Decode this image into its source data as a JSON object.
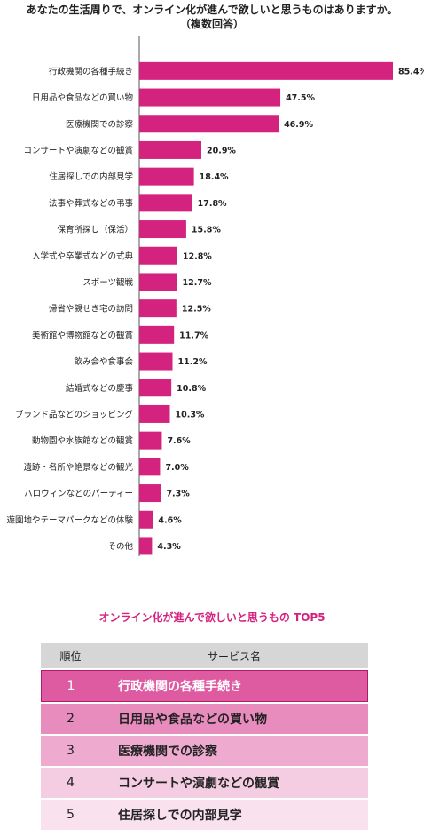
{
  "title_line1": "あなたの生活周りで、オンライン化が進んで欲しいと思うものはありますか。",
  "title_line2": "（複数回答）",
  "chart_data": {
    "type": "bar",
    "orientation": "horizontal",
    "categories": [
      "行政機関の各種手続き",
      "日用品や食品などの買い物",
      "医療機関での診察",
      "コンサートや演劇などの観賞",
      "住居探しでの内部見学",
      "法事や葬式などの弔事",
      "保育所探し（保活）",
      "入学式や卒業式などの式典",
      "スポーツ観戦",
      "帰省や親せき宅の訪問",
      "美術館や博物館などの観賞",
      "飲み会や食事会",
      "結婚式などの慶事",
      "ブランド品などのショッピング",
      "動物園や水族館などの観賞",
      "遺跡・名所や絶景などの観光",
      "ハロウィンなどのパーティー",
      "遊園地やテーマパークなどの体験",
      "その他"
    ],
    "values": [
      85.4,
      47.5,
      46.9,
      20.9,
      18.4,
      17.8,
      15.8,
      12.8,
      12.7,
      12.5,
      11.7,
      11.2,
      10.8,
      10.3,
      7.6,
      7.0,
      7.3,
      4.6,
      4.3
    ],
    "value_labels": [
      "85.4%",
      "47.5%",
      "46.9%",
      "20.9%",
      "18.4%",
      "17.8%",
      "15.8%",
      "12.8%",
      "12.7%",
      "12.5%",
      "11.7%",
      "11.2%",
      "10.8%",
      "10.3%",
      "7.6%",
      "7.0%",
      "7.3%",
      "4.6%",
      "4.3%"
    ],
    "bar_color": "#d4237f",
    "xlim": [
      0,
      90
    ]
  },
  "top5": {
    "title": "オンライン化が進んで欲しいと思うもの TOP5",
    "headers": [
      "順位",
      "サービス名"
    ],
    "rows": [
      {
        "rank": "1",
        "name": "行政機関の各種手続き"
      },
      {
        "rank": "2",
        "name": "日用品や食品などの買い物"
      },
      {
        "rank": "3",
        "name": "医療機関での診察"
      },
      {
        "rank": "4",
        "name": "コンサートや演劇などの観賞"
      },
      {
        "rank": "5",
        "name": "住居探しでの内部見学"
      }
    ]
  }
}
